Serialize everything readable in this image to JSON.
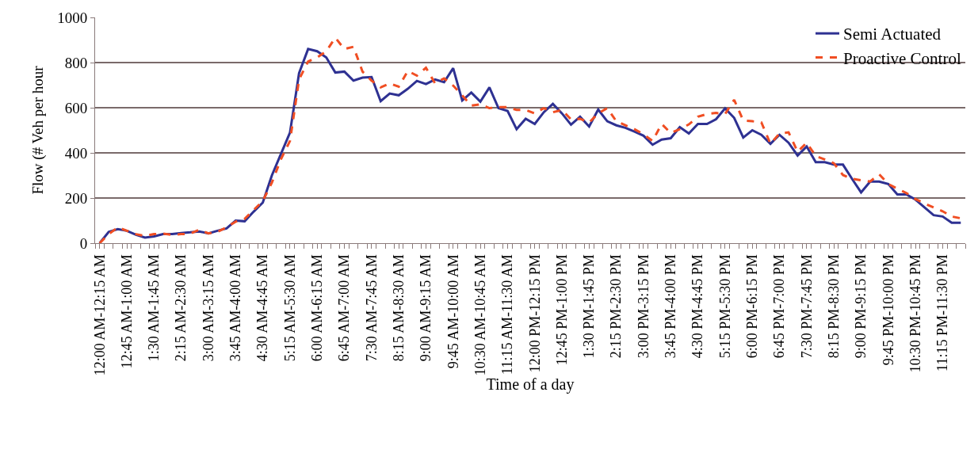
{
  "chart_data": {
    "type": "line",
    "xlabel": "Time of a day",
    "ylabel": "Flow (# Veh per hour",
    "categories": [
      "12:00 AM-12:15 AM",
      null,
      null,
      "12:45 AM-1:00 AM",
      null,
      null,
      "1:30 AM-1:45 AM",
      null,
      null,
      "2:15 AM-2:30 AM",
      null,
      null,
      "3:00 AM-3:15 AM",
      null,
      null,
      "3:45 AM-4:00 AM",
      null,
      null,
      "4:30 AM-4:45 AM",
      null,
      null,
      "5:15 AM-5:30 AM",
      null,
      null,
      "6:00 AM-6:15 AM",
      null,
      null,
      "6:45 AM-7:00 AM",
      null,
      null,
      "7:30 AM-7:45 AM",
      null,
      null,
      "8:15 AM-8:30 AM",
      null,
      null,
      "9:00 AM-9:15 AM",
      null,
      null,
      "9:45 AM-10:00 AM",
      null,
      null,
      "10:30 AM-10:45 AM",
      null,
      null,
      "11:15 AM-11:30 AM",
      null,
      null,
      "12:00 PM-12:15 PM",
      null,
      null,
      "12:45 PM-1:00 PM",
      null,
      null,
      "1:30 PM-1:45 PM",
      null,
      null,
      "2:15 PM-2:30 PM",
      null,
      null,
      "3:00 PM-3:15 PM",
      null,
      null,
      "3:45 PM-4:00 PM",
      null,
      null,
      "4:30 PM-4:45 PM",
      null,
      null,
      "5:15 PM-5:30 PM",
      null,
      null,
      "6:00 PM-6:15 PM",
      null,
      null,
      "6:45 PM-7:00 PM",
      null,
      null,
      "7:30 PM-7:45 PM",
      null,
      null,
      "8:15 PM-8:30 PM",
      null,
      null,
      "9:00 PM-9:15 PM",
      null,
      null,
      "9:45 PM-10:00 PM",
      null,
      null,
      "10:30 PM-10:45 PM",
      null,
      null,
      "11:15 PM-11:30 PM",
      null,
      null
    ],
    "series": [
      {
        "name": "Semi Actuated",
        "color": "#2e3192",
        "line_style": "solid",
        "values": [
          0,
          50,
          62,
          55,
          37,
          25,
          30,
          40,
          40,
          45,
          48,
          52,
          43,
          55,
          65,
          100,
          97,
          140,
          180,
          300,
          395,
          490,
          753,
          860,
          850,
          823,
          756,
          760,
          720,
          733,
          736,
          629,
          663,
          655,
          684,
          719,
          705,
          725,
          713,
          775,
          632,
          667,
          627,
          690,
          598,
          586,
          505,
          551,
          528,
          580,
          617,
          575,
          525,
          560,
          517,
          592,
          540,
          522,
          511,
          494,
          476,
          436,
          459,
          465,
          514,
          486,
          528,
          528,
          549,
          597,
          555,
          468,
          500,
          480,
          440,
          480,
          445,
          388,
          428,
          359,
          359,
          348,
          348,
          285,
          225,
          273,
          273,
          262,
          216,
          216,
          193,
          158,
          124,
          118,
          90,
          90
        ]
      },
      {
        "name": "Proactive Control",
        "color": "#f04e23",
        "line_style": "dashed",
        "values": [
          0,
          40,
          70,
          55,
          40,
          32,
          40,
          42,
          37,
          40,
          42,
          60,
          43,
          50,
          70,
          95,
          108,
          147,
          187,
          268,
          372,
          453,
          725,
          805,
          823,
          850,
          910,
          860,
          870,
          760,
          720,
          690,
          708,
          693,
          763,
          742,
          777,
          708,
          730,
          698,
          655,
          609,
          615,
          598,
          603,
          603,
          590,
          590,
          575,
          598,
          580,
          590,
          548,
          551,
          534,
          575,
          598,
          540,
          522,
          505,
          482,
          453,
          528,
          488,
          505,
          526,
          560,
          572,
          577,
          572,
          635,
          543,
          540,
          535,
          440,
          486,
          491,
          405,
          445,
          386,
          371,
          354,
          302,
          285,
          279,
          273,
          305,
          262,
          241,
          222,
          195,
          176,
          158,
          141,
          118,
          110
        ]
      }
    ],
    "ylim": [
      0,
      1000
    ],
    "yticks": [
      0,
      200,
      400,
      600,
      800,
      1000
    ],
    "grid": "y",
    "legend": "top right",
    "marker": "none"
  }
}
